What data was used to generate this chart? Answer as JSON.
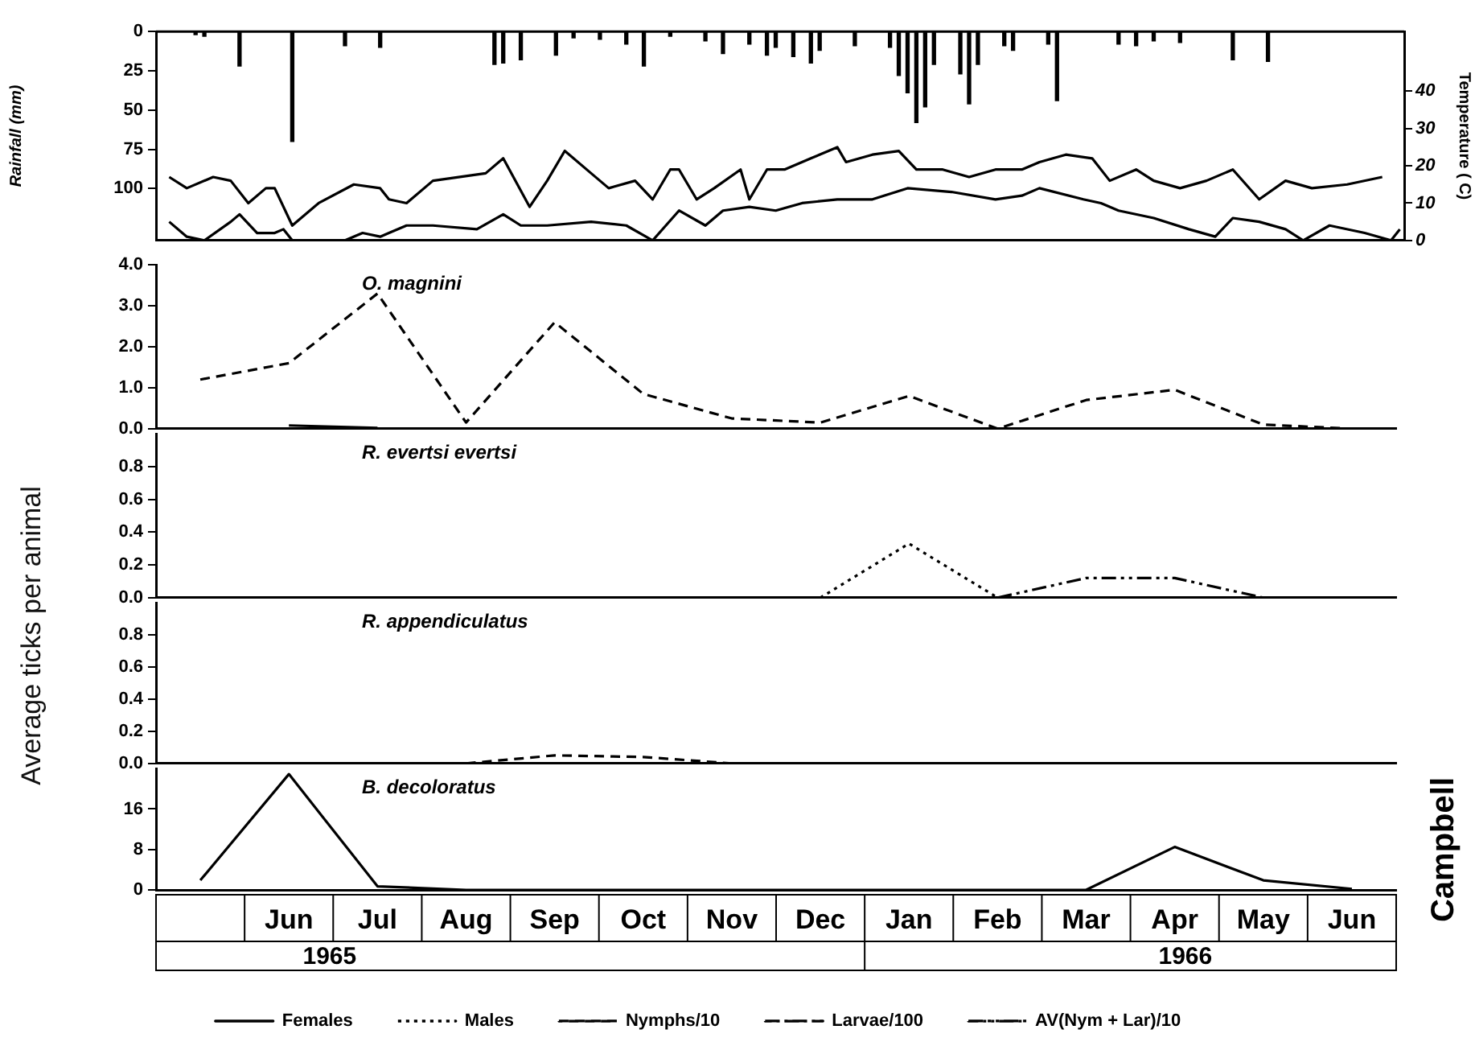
{
  "chart_data": [
    {
      "type": "bar",
      "ylabel": "Rainfall (mm)",
      "y2label": "Temperature ( C)",
      "ylim": [
        133,
        0
      ],
      "yticks": [
        0,
        25,
        50,
        75,
        100
      ],
      "y2lim": [
        0,
        56
      ],
      "y2ticks": [
        0,
        10,
        20,
        30,
        40
      ],
      "tick_labels": "y",
      "categories": [
        null,
        null,
        null,
        null,
        null,
        null,
        null,
        null,
        null,
        null,
        null,
        null,
        null,
        null,
        null,
        null,
        null,
        null,
        null,
        null,
        null,
        null,
        null,
        null,
        null,
        null,
        null,
        null,
        null,
        null,
        null,
        null,
        null,
        null,
        null,
        null,
        null,
        null,
        null,
        null,
        null,
        null,
        null,
        null,
        null,
        null,
        null,
        null,
        null,
        null,
        null,
        null,
        null,
        null,
        null,
        null,
        null,
        null,
        null,
        null,
        null,
        null,
        null,
        null,
        null,
        null,
        null,
        null,
        null,
        null,
        null,
        null,
        null,
        null,
        null,
        null,
        null,
        null,
        null,
        null,
        null,
        null,
        null,
        null,
        null,
        null,
        null,
        null,
        null,
        null,
        null,
        null,
        null,
        null,
        null,
        null,
        null,
        null,
        null,
        null,
        null,
        null,
        null,
        null,
        null,
        null,
        null,
        null,
        null,
        null,
        null,
        null,
        null,
        null,
        null,
        null,
        null,
        null,
        null,
        null,
        null,
        null,
        null,
        null,
        null,
        null,
        null,
        null,
        null,
        null,
        null,
        null,
        null,
        null,
        null,
        null,
        null,
        null,
        null,
        null,
        null,
        null
      ],
      "series": [
        {
          "color": "#000000",
          "values": [
            null,
            null,
            null,
            null,
            2,
            3,
            null,
            null,
            null,
            22,
            null,
            null,
            null,
            null,
            null,
            70,
            null,
            null,
            null,
            null,
            null,
            9,
            null,
            null,
            null,
            10,
            null,
            null,
            null,
            null,
            null,
            null,
            null,
            null,
            null,
            null,
            null,
            null,
            21,
            20,
            null,
            18,
            null,
            null,
            null,
            15,
            null,
            4,
            null,
            null,
            5,
            null,
            null,
            8,
            null,
            22,
            null,
            null,
            3,
            null,
            null,
            null,
            6,
            null,
            14,
            null,
            null,
            8,
            null,
            15,
            10,
            null,
            16,
            null,
            20,
            12,
            null,
            null,
            null,
            9,
            null,
            null,
            null,
            10,
            28,
            39,
            58,
            48,
            21,
            null,
            null,
            27,
            46,
            21,
            null,
            null,
            9,
            12,
            null,
            null,
            null,
            8,
            44,
            null,
            null,
            null,
            null,
            null,
            null,
            8,
            null,
            9,
            null,
            6,
            null,
            null,
            7,
            null,
            null,
            null,
            null,
            null,
            18,
            null,
            null,
            null,
            19,
            null,
            null,
            null,
            null,
            null,
            null,
            null,
            null,
            null,
            null,
            null,
            null,
            null,
            null,
            null
          ]
        },
        {
          "type": "line",
          "axis": "y2",
          "color": "#000000",
          "line_style": "solid",
          "values": [
            null,
            17,
            null,
            14,
            null,
            null,
            17,
            null,
            16,
            null,
            10,
            null,
            14,
            14,
            null,
            4,
            null,
            null,
            10,
            null,
            null,
            null,
            15,
            null,
            null,
            14,
            11,
            null,
            10,
            null,
            null,
            16,
            null,
            null,
            null,
            null,
            null,
            18,
            null,
            22,
            null,
            null,
            9,
            null,
            16,
            null,
            24,
            null,
            null,
            18,
            null,
            14,
            null,
            null,
            16,
            null,
            11,
            null,
            19,
            19,
            null,
            11,
            null,
            14,
            null,
            null,
            19,
            11,
            null,
            19,
            null,
            19,
            null,
            null,
            22,
            null,
            null,
            25,
            21,
            null,
            null,
            23,
            null,
            null,
            24,
            null,
            19,
            null,
            null,
            19,
            null,
            null,
            17,
            null,
            null,
            19,
            null,
            null,
            19,
            null,
            21,
            null,
            null,
            23,
            null,
            null,
            22,
            null,
            16,
            null,
            null,
            19,
            null,
            16,
            null,
            null,
            14,
            null,
            null,
            16,
            null,
            null,
            19,
            null,
            null,
            11,
            null,
            null,
            16,
            null,
            null,
            14,
            null,
            null,
            null,
            15,
            null,
            null,
            null,
            17,
            null,
            null
          ]
        },
        {
          "type": "line",
          "axis": "y2",
          "color": "#000000",
          "line_style": "solid",
          "values": [
            null,
            5,
            null,
            1,
            null,
            0,
            null,
            null,
            5,
            7,
            null,
            2,
            null,
            2,
            3,
            0,
            null,
            null,
            null,
            null,
            null,
            0,
            null,
            2,
            null,
            1,
            2,
            null,
            4,
            null,
            null,
            4,
            null,
            null,
            null,
            null,
            3,
            null,
            null,
            7,
            null,
            4,
            null,
            null,
            4,
            null,
            null,
            null,
            null,
            5,
            null,
            null,
            null,
            4,
            null,
            null,
            0,
            null,
            null,
            8,
            null,
            null,
            4,
            null,
            8,
            null,
            null,
            9,
            null,
            null,
            8,
            null,
            null,
            10,
            null,
            null,
            null,
            11,
            null,
            null,
            null,
            11,
            null,
            null,
            null,
            14,
            null,
            null,
            null,
            null,
            13,
            null,
            null,
            null,
            null,
            11,
            null,
            null,
            12,
            null,
            14,
            null,
            null,
            null,
            null,
            11,
            null,
            10,
            null,
            8,
            null,
            null,
            null,
            6,
            null,
            null,
            null,
            3,
            null,
            null,
            1,
            null,
            6,
            null,
            null,
            5,
            null,
            null,
            3,
            null,
            0,
            null,
            null,
            4,
            null,
            null,
            null,
            2,
            null,
            null,
            0,
            3
          ]
        }
      ]
    },
    {
      "type": "line",
      "title": "O. magnini",
      "categories": [
        null,
        null,
        null,
        null,
        null,
        null,
        null,
        null,
        null,
        null,
        null,
        null,
        null,
        null
      ],
      "ylim": [
        0,
        4
      ],
      "yticks": [
        {
          "value": 0,
          "label": "0.0"
        },
        {
          "value": 1,
          "label": "1.0"
        },
        {
          "value": 2,
          "label": "2.0"
        },
        {
          "value": 3,
          "label": "3.0"
        },
        {
          "value": 4,
          "label": "4.0"
        }
      ],
      "tick_labels": "y",
      "series": [
        {
          "color": "#000000",
          "line_style": "dashed",
          "values": [
            1.2,
            1.6,
            3.3,
            0.15,
            2.6,
            0.85,
            0.25,
            0.15,
            0.8,
            0,
            0.7,
            0.95,
            0.1,
            0
          ]
        },
        {
          "color": "#000000",
          "line_style": "solid",
          "values": [
            null,
            0.08,
            0.02,
            null,
            null,
            null,
            null,
            null,
            null,
            null,
            null,
            null,
            null,
            null
          ]
        }
      ]
    },
    {
      "type": "line",
      "title": "R. evertsi evertsi",
      "ylabel": "Average ticks per animal",
      "categories": [
        null,
        null,
        null,
        null,
        null,
        null,
        null,
        null,
        null,
        null,
        null,
        null,
        null,
        null
      ],
      "ylim": [
        0,
        1
      ],
      "yticks": [
        {
          "value": 0,
          "label": "0.0"
        },
        {
          "value": 0.2,
          "label": "0.2"
        },
        {
          "value": 0.4,
          "label": "0.4"
        },
        {
          "value": 0.6,
          "label": "0.6"
        },
        {
          "value": 0.8,
          "label": "0.8"
        }
      ],
      "tick_labels": "y",
      "series": [
        {
          "color": "#000000",
          "line_style": "dotted",
          "values": [
            null,
            null,
            null,
            null,
            null,
            null,
            null,
            0,
            0.33,
            0,
            null,
            null,
            null,
            null
          ]
        },
        {
          "color": "#000000",
          "line_style": "dashdotdot",
          "values": [
            null,
            null,
            null,
            null,
            null,
            null,
            null,
            null,
            null,
            0,
            0.12,
            0.12,
            0,
            null
          ]
        }
      ]
    },
    {
      "type": "line",
      "title": "R. appendiculatus",
      "categories": [
        null,
        null,
        null,
        null,
        null,
        null,
        null,
        null,
        null,
        null,
        null,
        null,
        null,
        null
      ],
      "ylim": [
        0,
        1
      ],
      "yticks": [
        {
          "value": 0,
          "label": "0.0"
        },
        {
          "value": 0.2,
          "label": "0.2"
        },
        {
          "value": 0.4,
          "label": "0.4"
        },
        {
          "value": 0.6,
          "label": "0.6"
        },
        {
          "value": 0.8,
          "label": "0.8"
        }
      ],
      "tick_labels": "y",
      "series": [
        {
          "color": "#000000",
          "line_style": "dashed",
          "values": [
            null,
            null,
            null,
            0,
            0.05,
            0.04,
            0,
            null,
            null,
            null,
            null,
            null,
            null,
            null
          ]
        }
      ]
    },
    {
      "type": "line",
      "title": "B. decoloratus",
      "categories": [
        null,
        "Jun",
        "Jul",
        "Aug",
        "Sep",
        "Oct",
        "Nov",
        "Dec",
        "Jan",
        "Feb",
        "Mar",
        "Apr",
        "May",
        "Jun"
      ],
      "ylim": [
        0,
        24
      ],
      "yticks": [
        0,
        8,
        16
      ],
      "legend": "bottom",
      "annotations": [
        "1965",
        "1966",
        "Campbell"
      ],
      "series": [
        {
          "name": "Females",
          "color": "#000000",
          "line_style": "solid",
          "values": [
            1.9,
            22.9,
            0.7,
            0,
            null,
            null,
            null,
            null,
            null,
            null,
            0,
            8.5,
            1.9,
            0.2
          ]
        },
        {
          "name": "Males",
          "color": "#000000",
          "line_style": "dotted",
          "values": [
            null,
            null,
            null,
            null,
            null,
            null,
            null,
            null,
            null,
            null,
            null,
            null,
            null,
            null
          ]
        },
        {
          "name": "Nymphs/10",
          "color": "#000000",
          "line_style": "dashed",
          "values": [
            null,
            null,
            null,
            null,
            null,
            null,
            null,
            null,
            null,
            null,
            null,
            null,
            null,
            null
          ]
        },
        {
          "name": "Larvae/100",
          "color": "#000000",
          "line_style": "dashdot",
          "values": [
            null,
            null,
            null,
            null,
            null,
            null,
            null,
            null,
            null,
            null,
            null,
            null,
            null,
            null
          ]
        },
        {
          "name": "AV(Nym + Lar)/10",
          "color": "#000000",
          "line_style": "dashdotdot",
          "values": [
            null,
            null,
            null,
            null,
            null,
            null,
            null,
            null,
            null,
            null,
            null,
            null,
            null,
            null
          ]
        }
      ]
    }
  ]
}
